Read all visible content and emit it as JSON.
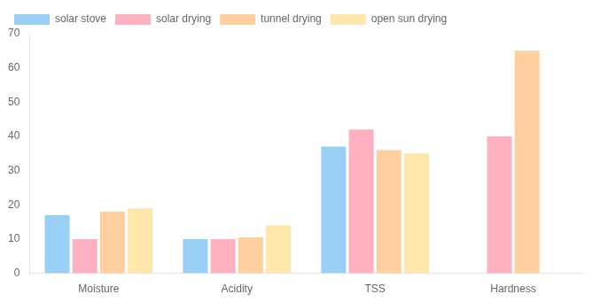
{
  "chart_data": {
    "type": "bar",
    "categories": [
      "Moisture",
      "Acidity",
      "TSS",
      "Hardness"
    ],
    "series": [
      {
        "name": "solar stove",
        "values": [
          17,
          10,
          37,
          0
        ]
      },
      {
        "name": "solar drying",
        "values": [
          10,
          10,
          42,
          40
        ]
      },
      {
        "name": "tunnel drying",
        "values": [
          18,
          10.5,
          36,
          65
        ]
      },
      {
        "name": "open sun drying",
        "values": [
          19,
          14,
          35,
          0
        ]
      }
    ],
    "ylim": [
      0,
      70
    ],
    "yticks": [
      0,
      10,
      20,
      30,
      40,
      50,
      60,
      70
    ],
    "grid": false,
    "legend": "upper left"
  }
}
